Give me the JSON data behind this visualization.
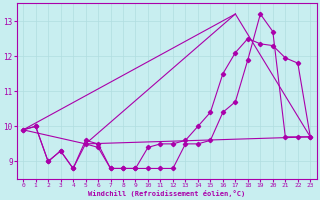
{
  "xlabel": "Windchill (Refroidissement éolien,°C)",
  "bg_color": "#c8eef0",
  "grid_color": "#b0dde0",
  "line_color": "#aa00aa",
  "xlim": [
    -0.5,
    23.5
  ],
  "ylim": [
    8.5,
    13.5
  ],
  "yticks": [
    9,
    10,
    11,
    12,
    13
  ],
  "xticks": [
    0,
    1,
    2,
    3,
    4,
    5,
    6,
    7,
    8,
    9,
    10,
    11,
    12,
    13,
    14,
    15,
    16,
    17,
    18,
    19,
    20,
    21,
    22,
    23
  ],
  "zigzag_x": [
    0,
    1,
    2,
    3,
    4,
    5,
    6,
    7,
    8,
    9,
    10,
    11,
    12,
    13,
    14,
    15,
    16,
    17,
    18,
    19,
    20,
    21,
    22,
    23
  ],
  "zigzag_y": [
    9.9,
    10.0,
    9.0,
    9.3,
    8.8,
    9.6,
    9.5,
    8.8,
    8.8,
    8.8,
    8.8,
    8.8,
    8.8,
    9.5,
    9.5,
    9.6,
    10.4,
    10.7,
    11.9,
    13.2,
    12.7,
    9.7,
    9.7,
    9.7
  ],
  "smooth_x": [
    0,
    1,
    2,
    3,
    4,
    5,
    6,
    7,
    8,
    9,
    10,
    11,
    12,
    13,
    14,
    15,
    16,
    17,
    18,
    19,
    20,
    21,
    22,
    23
  ],
  "smooth_y": [
    9.9,
    10.0,
    9.0,
    9.3,
    8.8,
    9.5,
    9.4,
    8.8,
    8.8,
    8.8,
    9.4,
    9.5,
    9.5,
    9.6,
    10.0,
    10.4,
    11.5,
    12.1,
    12.5,
    12.35,
    12.3,
    11.95,
    11.8,
    9.7
  ],
  "triangle_lines": [
    {
      "x": [
        0,
        17
      ],
      "y": [
        9.9,
        13.2
      ]
    },
    {
      "x": [
        17,
        23
      ],
      "y": [
        13.2,
        9.7
      ]
    },
    {
      "x": [
        0,
        5
      ],
      "y": [
        9.9,
        9.5
      ]
    },
    {
      "x": [
        5,
        17
      ],
      "y": [
        9.5,
        13.2
      ]
    },
    {
      "x": [
        5,
        23
      ],
      "y": [
        9.5,
        9.7
      ]
    }
  ]
}
